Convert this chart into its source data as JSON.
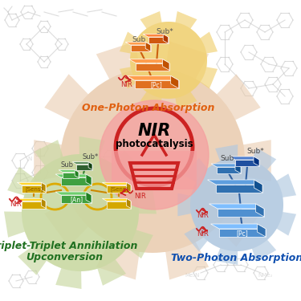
{
  "bg_color": "#ffffff",
  "gear_main_color": "#e8c8a8",
  "gear_opa_color": "#f0d890",
  "gear_green_color": "#c8d8a0",
  "gear_blue_color": "#b0c8e0",
  "bulb_color": "#cc2222",
  "bulb_glow": "#f5a0a0",
  "one_photon_label": "One-Photon Absorption",
  "one_photon_color": "#e06010",
  "tta_label1": "Triplet-Triplet Annihilation",
  "tta_label2": "Upconversion",
  "tta_color": "#207020",
  "tpa_label": "Two-Photon Absorption",
  "tpa_color": "#1050b0",
  "nir_color": "#cc2222",
  "orange_plate": "#e07020",
  "yellow_plate": "#d4a800",
  "green_plate": "#40a040",
  "blue_plate": "#5090d0",
  "gray_chem": "#bbbbbb",
  "chem_alpha": 0.5
}
